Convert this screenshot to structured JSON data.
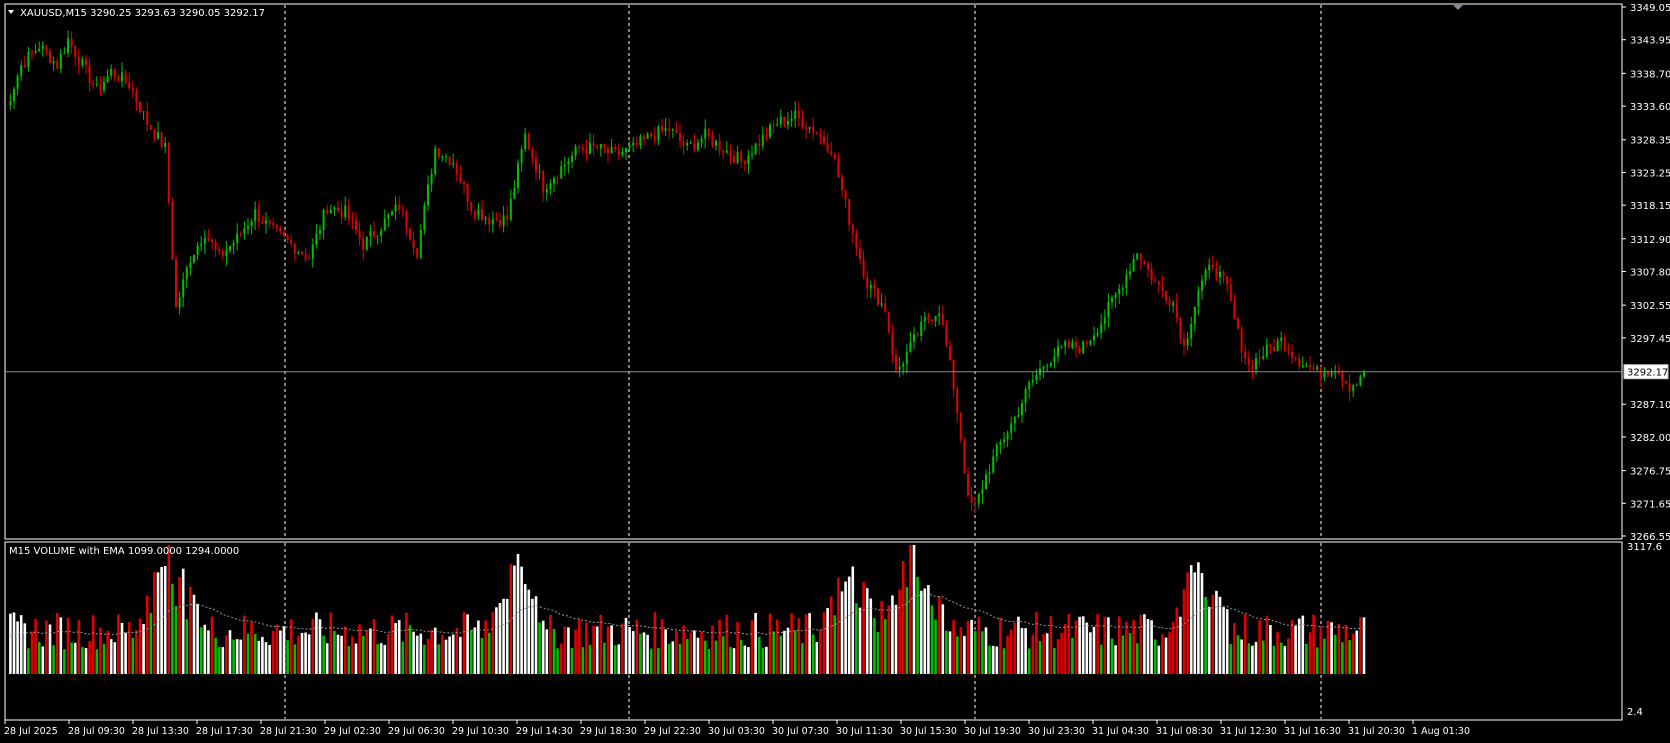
{
  "price_panel": {
    "header": "XAUUSD,M15  3290.25 3293.63 3290.05 3292.17",
    "current_price_label": "3292.17",
    "scroll_marker": "shift-triangle-icon"
  },
  "volume_panel": {
    "header": "M15 VOLUME with EMA 1099.0000 1294.0000",
    "y_labels": [
      "3117.6",
      "2.4"
    ]
  },
  "colors": {
    "background": "#000000",
    "grid": "#ffffff",
    "bull": "#00c000",
    "bear": "#e00000",
    "neutral_volume": "#ffffff",
    "ema": "#9a9a9a",
    "price_line": "#7a8fa8",
    "label": "#ffffff"
  },
  "chart_data": [
    {
      "type": "candlestick",
      "symbol": "XAUUSD",
      "timeframe": "M15",
      "ylim": [
        3266.55,
        3349.05
      ],
      "y_tick_labels": [
        "3349.05",
        "3343.95",
        "3338.70",
        "3333.60",
        "3328.35",
        "3323.25",
        "3318.15",
        "3312.90",
        "3307.80",
        "3302.55",
        "3297.45",
        "3292.17",
        "3287.10",
        "3282.00",
        "3276.75",
        "3271.65",
        "3266.55"
      ],
      "x_tick_labels": [
        "28 Jul 2025",
        "28 Jul 09:30",
        "28 Jul 13:30",
        "28 Jul 17:30",
        "28 Jul 21:30",
        "29 Jul 02:30",
        "29 Jul 06:30",
        "29 Jul 10:30",
        "29 Jul 14:30",
        "29 Jul 18:30",
        "29 Jul 22:30",
        "30 Jul 03:30",
        "30 Jul 07:30",
        "30 Jul 11:30",
        "30 Jul 15:30",
        "30 Jul 19:30",
        "30 Jul 23:30",
        "31 Jul 04:30",
        "31 Jul 08:30",
        "31 Jul 12:30",
        "31 Jul 16:30",
        "31 Jul 20:30",
        "1 Aug 01:30"
      ],
      "last_bar": {
        "open": 3290.25,
        "high": 3293.63,
        "low": 3290.05,
        "close": 3292.17
      },
      "close_path": [
        [
          0,
          3332
        ],
        [
          5,
          3340
        ],
        [
          10,
          3343
        ],
        [
          15,
          3340
        ],
        [
          18,
          3344
        ],
        [
          22,
          3340
        ],
        [
          26,
          3336
        ],
        [
          30,
          3339
        ],
        [
          35,
          3337
        ],
        [
          40,
          3331
        ],
        [
          45,
          3327
        ],
        [
          48,
          3302
        ],
        [
          52,
          3310
        ],
        [
          56,
          3314
        ],
        [
          60,
          3310
        ],
        [
          65,
          3313
        ],
        [
          70,
          3317
        ],
        [
          75,
          3314
        ],
        [
          80,
          3312
        ],
        [
          85,
          3310
        ],
        [
          90,
          3318
        ],
        [
          95,
          3317
        ],
        [
          100,
          3312
        ],
        [
          105,
          3315
        ],
        [
          110,
          3318
        ],
        [
          115,
          3311
        ],
        [
          120,
          3327
        ],
        [
          125,
          3325
        ],
        [
          130,
          3318
        ],
        [
          135,
          3316
        ],
        [
          140,
          3316
        ],
        [
          145,
          3329
        ],
        [
          150,
          3321
        ],
        [
          155,
          3324
        ],
        [
          160,
          3327
        ],
        [
          165,
          3327
        ],
        [
          170,
          3326
        ],
        [
          175,
          3327
        ],
        [
          180,
          3329
        ],
        [
          185,
          3330
        ],
        [
          190,
          3327
        ],
        [
          195,
          3329
        ],
        [
          200,
          3327
        ],
        [
          205,
          3325
        ],
        [
          210,
          3328
        ],
        [
          215,
          3331
        ],
        [
          220,
          3332
        ],
        [
          225,
          3330
        ],
        [
          230,
          3327
        ],
        [
          235,
          3316
        ],
        [
          240,
          3306
        ],
        [
          245,
          3302
        ],
        [
          248,
          3292
        ],
        [
          252,
          3296
        ],
        [
          256,
          3300
        ],
        [
          260,
          3302
        ],
        [
          264,
          3290
        ],
        [
          266,
          3282
        ],
        [
          268,
          3272
        ],
        [
          270,
          3271
        ],
        [
          273,
          3276
        ],
        [
          277,
          3281
        ],
        [
          281,
          3285
        ],
        [
          285,
          3290
        ],
        [
          290,
          3294
        ],
        [
          295,
          3296
        ],
        [
          300,
          3296
        ],
        [
          305,
          3300
        ],
        [
          310,
          3305
        ],
        [
          315,
          3311
        ],
        [
          320,
          3306
        ],
        [
          325,
          3303
        ],
        [
          328,
          3296
        ],
        [
          332,
          3305
        ],
        [
          336,
          3309
        ],
        [
          340,
          3305
        ],
        [
          343,
          3298
        ],
        [
          346,
          3293
        ],
        [
          350,
          3295
        ],
        [
          355,
          3297
        ],
        [
          360,
          3294
        ],
        [
          365,
          3292
        ],
        [
          370,
          3293
        ],
        [
          374,
          3290
        ],
        [
          378,
          3291
        ]
      ]
    },
    {
      "type": "bar",
      "name": "M15 VOLUME with EMA",
      "ema_period": 1099.0,
      "last_value": 1294.0,
      "ylim": [
        2.4,
        3117.6
      ],
      "peaks": [
        {
          "bar": 46,
          "value": 3117.6
        },
        {
          "bar": 143,
          "value": 2900
        },
        {
          "bar": 236,
          "value": 2600
        },
        {
          "bar": 253,
          "value": 3117.6
        },
        {
          "bar": 332,
          "value": 2700
        }
      ]
    }
  ]
}
